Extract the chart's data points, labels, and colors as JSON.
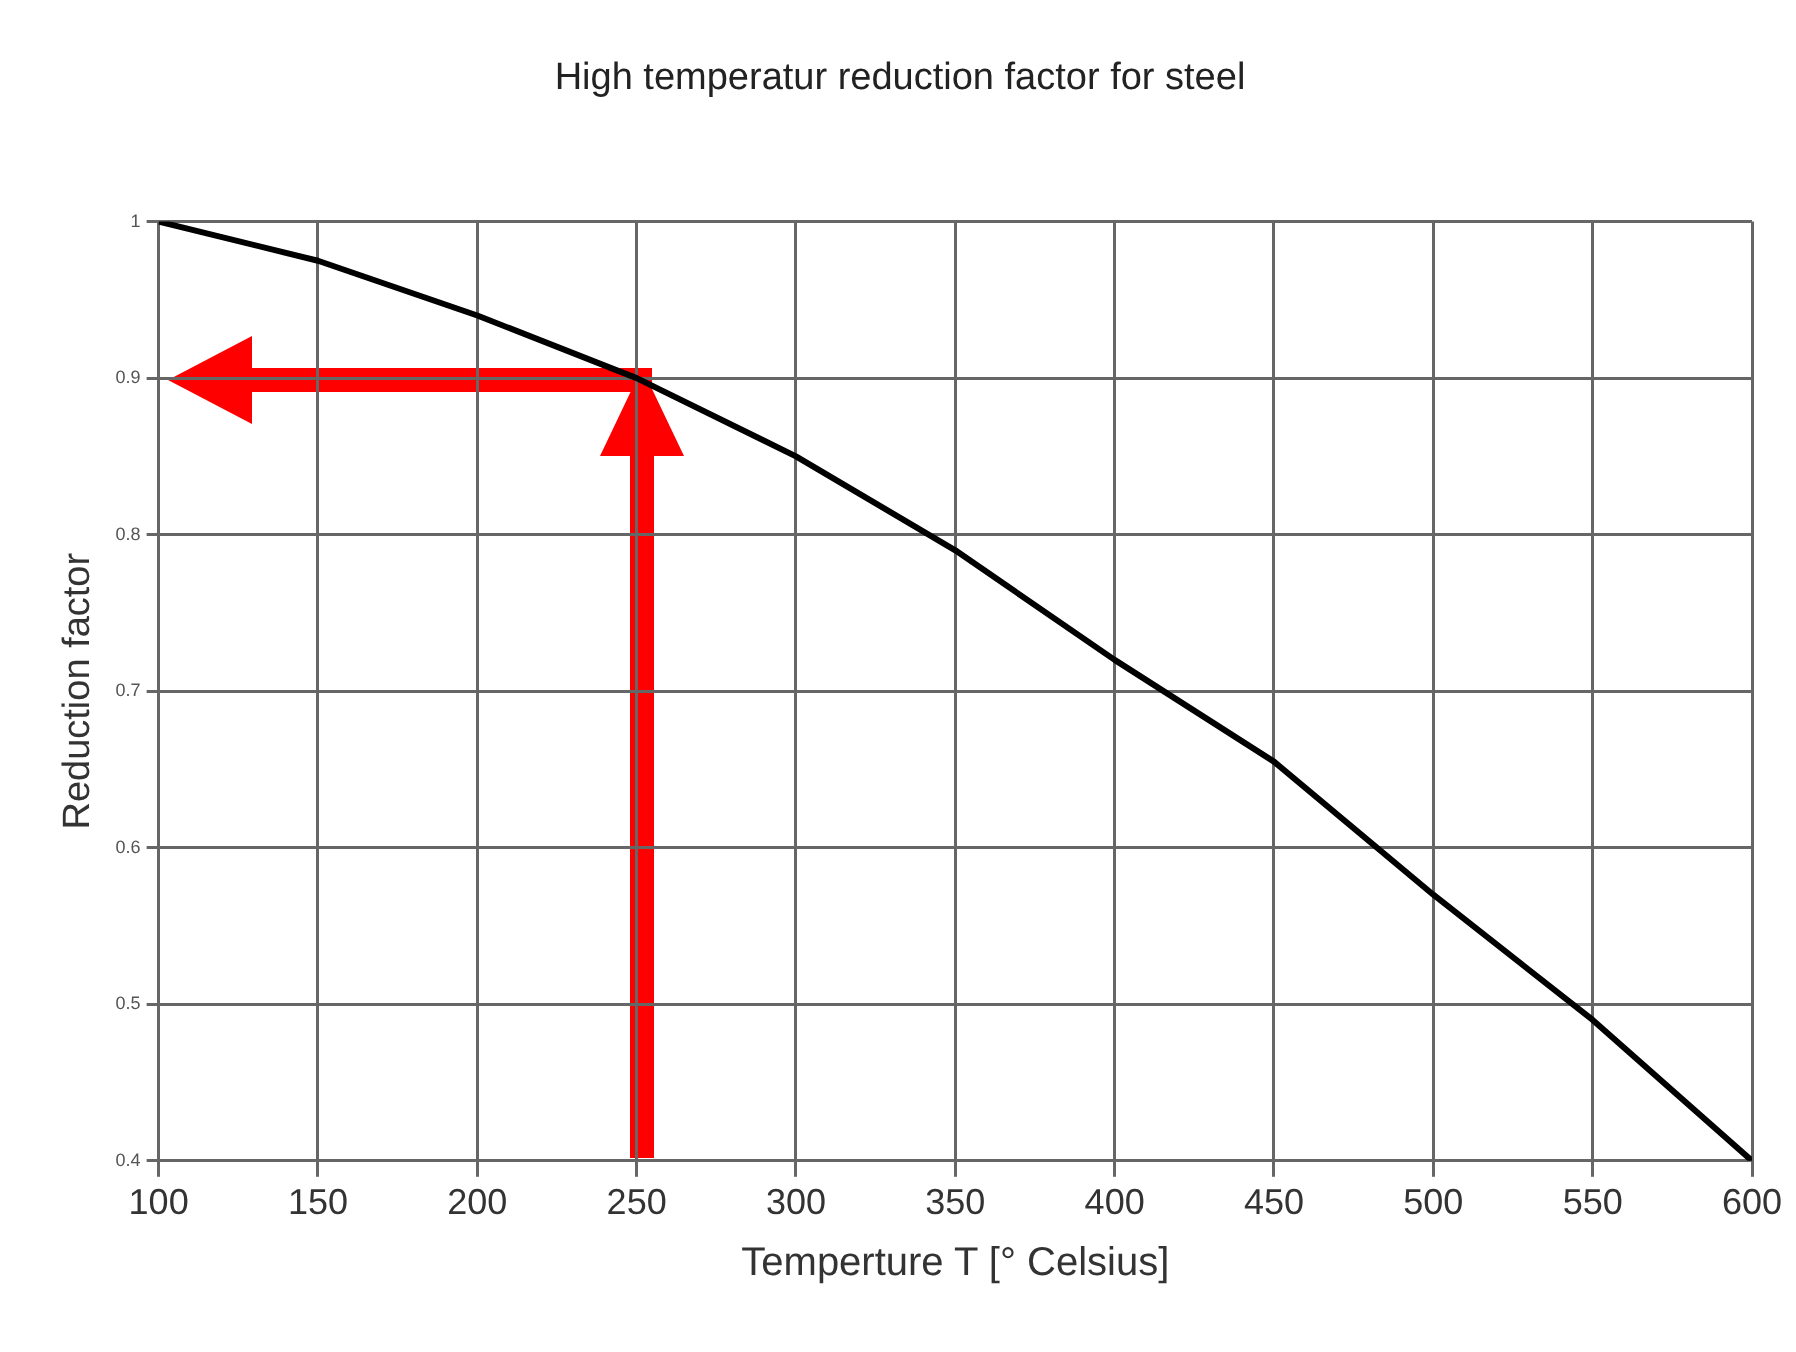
{
  "chart_data": {
    "type": "line",
    "title": "High temperatur reduction factor for steel",
    "xlabel": "Temperture T [° Celsius]",
    "ylabel": "Reduction factor",
    "x": [
      100,
      150,
      200,
      250,
      300,
      350,
      400,
      450,
      500,
      550,
      600
    ],
    "series": [
      {
        "color": "#000000",
        "values": [
          1.0,
          0.975,
          0.94,
          0.9,
          0.85,
          0.79,
          0.72,
          0.655,
          0.57,
          0.49,
          0.4
        ]
      }
    ],
    "xlim": [
      100,
      600
    ],
    "xticks": [
      100,
      150,
      200,
      250,
      300,
      350,
      400,
      450,
      500,
      550,
      600
    ],
    "ylim": [
      0.4,
      1
    ],
    "yticks": [
      0.4,
      0.5,
      0.6,
      0.7,
      0.8,
      0.9,
      1
    ],
    "grid": true,
    "legend": false,
    "marker": "none",
    "line_style": "solid"
  }
}
